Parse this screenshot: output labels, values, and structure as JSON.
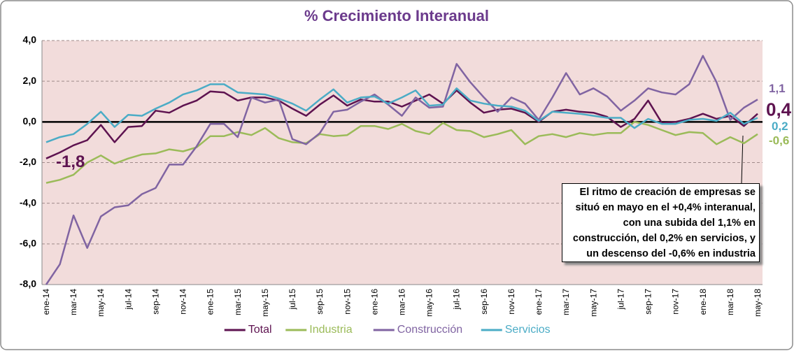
{
  "chart_data": {
    "type": "line",
    "title": "% Crecimiento Interanual",
    "categories": [
      "ene-14",
      null,
      "mar-14",
      null,
      "may-14",
      null,
      "jul-14",
      null,
      "sep-14",
      null,
      "nov-14",
      null,
      "ene-15",
      null,
      "mar-15",
      null,
      "may-15",
      null,
      "jul-15",
      null,
      "sep-15",
      null,
      "nov-15",
      null,
      "ene-16",
      null,
      "mar-16",
      null,
      "may-16",
      null,
      "jul-16",
      null,
      "sep-16",
      null,
      "nov-16",
      null,
      "ene-17",
      null,
      "mar-17",
      null,
      "may-17",
      null,
      "jul-17",
      null,
      "sep-17",
      null,
      "nov-17",
      null,
      "ene-18",
      null,
      "mar-18",
      null,
      "may-18"
    ],
    "series": [
      {
        "name": "Total",
        "color": "#5e1350",
        "values": [
          -1.8,
          -1.5,
          -1.15,
          -0.9,
          -0.15,
          -1.0,
          -0.25,
          -0.2,
          0.55,
          0.45,
          0.8,
          1.05,
          1.5,
          1.45,
          1.05,
          1.2,
          1.2,
          1.05,
          0.65,
          0.3,
          0.85,
          1.3,
          0.8,
          1.1,
          1.0,
          1.0,
          0.75,
          1.05,
          1.35,
          0.9,
          1.55,
          0.95,
          0.45,
          0.6,
          0.65,
          0.45,
          0.0,
          0.5,
          0.6,
          0.5,
          0.45,
          0.25,
          -0.25,
          0.15,
          1.05,
          -0.05,
          0.0,
          0.15,
          0.4,
          0.15,
          0.3,
          -0.2,
          0.4
        ],
        "value_labels": [
          "-1,8",
          null,
          null,
          null,
          null,
          null,
          null,
          null,
          null,
          null,
          null,
          null,
          null,
          null,
          null,
          null,
          null,
          null,
          null,
          null,
          null,
          null,
          null,
          null,
          null,
          null,
          null,
          null,
          null,
          null,
          null,
          null,
          null,
          null,
          null,
          null,
          null,
          null,
          null,
          null,
          null,
          null,
          null,
          null,
          null,
          null,
          null,
          null,
          null,
          null,
          null,
          null,
          "0,4"
        ]
      },
      {
        "name": "Industria",
        "color": "#9bbb59",
        "values": [
          -3.0,
          -2.85,
          -2.6,
          -2.0,
          -1.65,
          -2.05,
          -1.8,
          -1.6,
          -1.55,
          -1.35,
          -1.45,
          -1.25,
          -0.7,
          -0.7,
          -0.5,
          -0.65,
          -0.3,
          -0.8,
          -1.0,
          -1.05,
          -0.6,
          -0.7,
          -0.65,
          -0.2,
          -0.2,
          -0.35,
          -0.1,
          -0.45,
          -0.6,
          -0.05,
          -0.4,
          -0.45,
          -0.75,
          -0.6,
          -0.4,
          -1.1,
          -0.7,
          -0.6,
          -0.75,
          -0.55,
          -0.65,
          -0.55,
          -0.55,
          0.0,
          -0.15,
          -0.4,
          -0.65,
          -0.5,
          -0.55,
          -1.1,
          -0.75,
          -1.05,
          -0.6
        ],
        "value_labels": [
          null,
          null,
          null,
          null,
          null,
          null,
          null,
          null,
          null,
          null,
          null,
          null,
          null,
          null,
          null,
          null,
          null,
          null,
          null,
          null,
          null,
          null,
          null,
          null,
          null,
          null,
          null,
          null,
          null,
          null,
          null,
          null,
          null,
          null,
          null,
          null,
          null,
          null,
          null,
          null,
          null,
          null,
          null,
          null,
          null,
          null,
          null,
          null,
          null,
          null,
          null,
          null,
          "-0,6"
        ]
      },
      {
        "name": "Construcción",
        "color": "#8064a2",
        "values": [
          -8.0,
          -7.0,
          -4.6,
          -6.2,
          -4.65,
          -4.2,
          -4.1,
          -3.55,
          -3.25,
          -2.1,
          -2.1,
          -1.2,
          -0.1,
          -0.1,
          -0.75,
          1.2,
          0.95,
          1.1,
          -0.85,
          -1.1,
          -0.55,
          0.5,
          0.6,
          1.0,
          1.35,
          0.85,
          0.3,
          1.2,
          0.7,
          0.75,
          2.85,
          1.95,
          1.2,
          0.5,
          1.2,
          0.9,
          0.1,
          1.2,
          2.4,
          1.35,
          1.65,
          1.25,
          0.55,
          1.05,
          1.65,
          1.45,
          1.35,
          1.85,
          3.25,
          1.95,
          0.1,
          0.7,
          1.1
        ],
        "value_labels": [
          null,
          null,
          null,
          null,
          null,
          null,
          null,
          null,
          null,
          null,
          null,
          null,
          null,
          null,
          null,
          null,
          null,
          null,
          null,
          null,
          null,
          null,
          null,
          null,
          null,
          null,
          null,
          null,
          null,
          null,
          null,
          null,
          null,
          null,
          null,
          null,
          null,
          null,
          null,
          null,
          null,
          null,
          null,
          null,
          null,
          null,
          null,
          null,
          null,
          null,
          null,
          null,
          "1,1"
        ]
      },
      {
        "name": "Servicios",
        "color": "#4bacc6",
        "values": [
          -1.0,
          -0.75,
          -0.6,
          -0.1,
          0.5,
          -0.25,
          0.35,
          0.3,
          0.65,
          0.95,
          1.35,
          1.55,
          1.85,
          1.85,
          1.45,
          1.4,
          1.35,
          1.15,
          0.9,
          0.55,
          1.1,
          1.6,
          0.95,
          1.2,
          1.25,
          0.9,
          1.2,
          1.55,
          0.8,
          0.85,
          1.65,
          1.05,
          0.9,
          0.8,
          0.75,
          0.55,
          0.05,
          0.5,
          0.45,
          0.4,
          0.3,
          0.2,
          0.2,
          -0.3,
          0.15,
          -0.1,
          -0.1,
          0.1,
          0.15,
          0.05,
          0.45,
          -0.1,
          0.2
        ],
        "value_labels": [
          null,
          null,
          null,
          null,
          null,
          null,
          null,
          null,
          null,
          null,
          null,
          null,
          null,
          null,
          null,
          null,
          null,
          null,
          null,
          null,
          null,
          null,
          null,
          null,
          null,
          null,
          null,
          null,
          null,
          null,
          null,
          null,
          null,
          null,
          null,
          null,
          null,
          null,
          null,
          null,
          null,
          null,
          null,
          null,
          null,
          null,
          null,
          null,
          null,
          null,
          null,
          null,
          "0,2"
        ]
      }
    ],
    "ylim": [
      -8,
      4
    ],
    "yticks": [
      {
        "value": -8,
        "label": "-8,0"
      },
      {
        "value": -6,
        "label": "-6,0"
      },
      {
        "value": -4,
        "label": "-4,0"
      },
      {
        "value": -2,
        "label": "-2,0"
      },
      {
        "value": 0,
        "label": "0,0"
      },
      {
        "value": 2,
        "label": "2,0"
      },
      {
        "value": 4,
        "label": "4,0"
      }
    ],
    "grid": true,
    "legend": "bottom",
    "annotation": "El ritmo de creación de empresas se situó en mayo en el +0,4% interanual, con una subida del 1,1% en construcción, del 0,2% en servicios, y un descenso del -0,6% en industria"
  }
}
